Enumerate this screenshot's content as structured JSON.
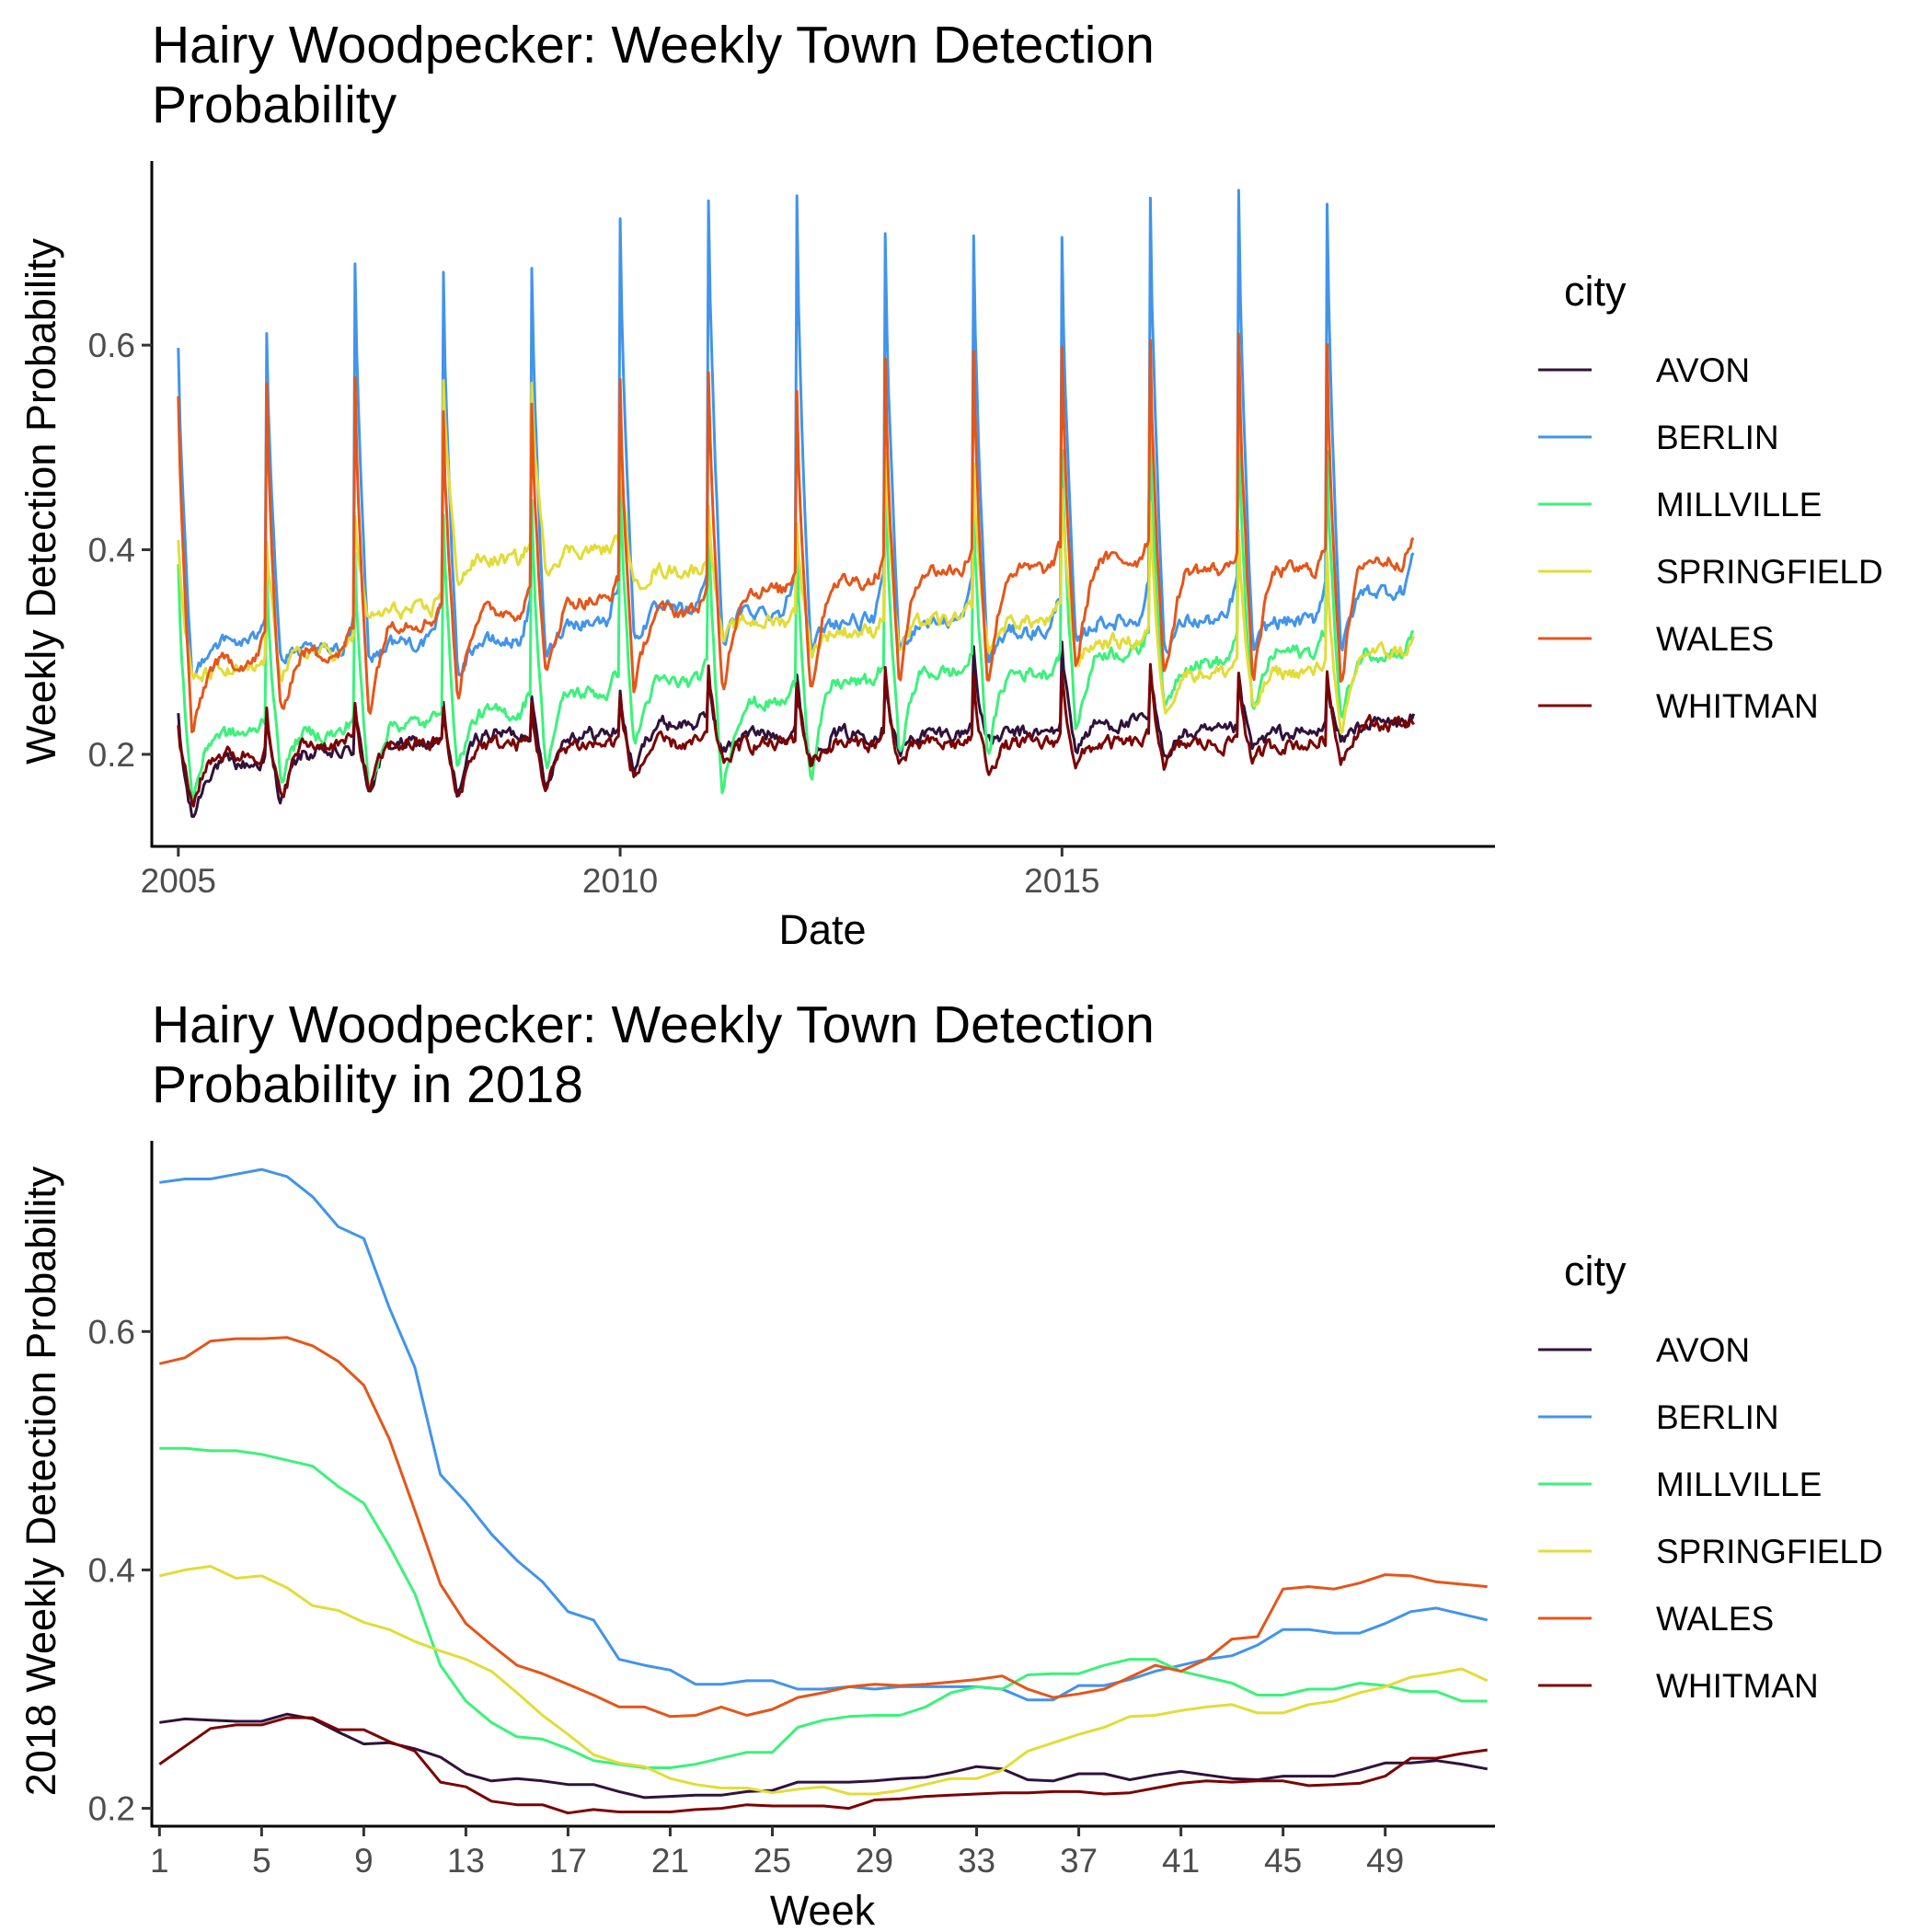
{
  "chart_data": [
    {
      "type": "line",
      "title": "Hairy Woodpecker: Weekly Town Detection Probability",
      "title_lines": [
        "Hairy Woodpecker: Weekly Town Detection",
        "Probability"
      ],
      "xlabel": "Date",
      "ylabel": "Weekly Detection Probability",
      "x_type": "date",
      "xlim": [
        2004.7,
        2019.9
      ],
      "ylim": [
        0.11,
        0.78
      ],
      "x_ticks": [
        2005,
        2010,
        2015
      ],
      "x_tick_labels": [
        "2005",
        "2010",
        "2015"
      ],
      "y_ticks": [
        0.2,
        0.4,
        0.6
      ],
      "y_tick_labels": [
        "0.2",
        "0.4",
        "0.6"
      ],
      "grid": false,
      "legend_title": "city",
      "legend_position": "right",
      "years": [
        2005,
        2006,
        2007,
        2008,
        2009,
        2010,
        2011,
        2012,
        2013,
        2014,
        2015,
        2016,
        2017,
        2018
      ],
      "series": [
        {
          "name": "AVON",
          "color": "#30123b",
          "annual_peak": [
            0.235,
            0.235,
            0.25,
            0.245,
            0.26,
            0.265,
            0.28,
            0.275,
            0.285,
            0.305,
            0.31,
            0.28,
            0.275,
            0.28
          ],
          "annual_trough": [
            0.135,
            0.155,
            0.165,
            0.16,
            0.17,
            0.18,
            0.2,
            0.195,
            0.2,
            0.21,
            0.205,
            0.2,
            0.205,
            0.21
          ],
          "annual_base": [
            0.19,
            0.2,
            0.21,
            0.22,
            0.22,
            0.23,
            0.22,
            0.22,
            0.22,
            0.22,
            0.23,
            0.22,
            0.22,
            0.23
          ]
        },
        {
          "name": "BERLIN",
          "color": "#4294ea",
          "annual_peak": [
            0.595,
            0.62,
            0.685,
            0.675,
            0.675,
            0.73,
            0.745,
            0.745,
            0.705,
            0.705,
            0.71,
            0.745,
            0.745,
            0.74
          ],
          "annual_trough": [
            0.27,
            0.29,
            0.29,
            0.28,
            0.29,
            0.31,
            0.31,
            0.3,
            0.3,
            0.29,
            0.3,
            0.3,
            0.3,
            0.3
          ],
          "annual_base": [
            0.31,
            0.3,
            0.31,
            0.31,
            0.33,
            0.34,
            0.34,
            0.33,
            0.33,
            0.32,
            0.33,
            0.33,
            0.33,
            0.36
          ]
        },
        {
          "name": "MILLVILLE",
          "color": "#3bf27a",
          "annual_peak": [
            0.38,
            0.385,
            0.4,
            0.445,
            0.455,
            0.48,
            0.44,
            0.42,
            0.47,
            0.45,
            0.5,
            0.52,
            0.525,
            0.5
          ],
          "annual_trough": [
            0.155,
            0.175,
            0.16,
            0.185,
            0.185,
            0.205,
            0.165,
            0.175,
            0.2,
            0.2,
            0.22,
            0.24,
            0.235,
            0.23
          ],
          "annual_base": [
            0.22,
            0.22,
            0.23,
            0.24,
            0.26,
            0.27,
            0.25,
            0.27,
            0.28,
            0.28,
            0.3,
            0.29,
            0.3,
            0.3
          ]
        },
        {
          "name": "SPRINGFIELD",
          "color": "#e2dc38",
          "annual_peak": [
            0.41,
            0.41,
            0.43,
            0.57,
            0.56,
            0.5,
            0.45,
            0.43,
            0.5,
            0.48,
            0.46,
            0.44,
            0.42,
            0.4
          ],
          "annual_trough": [
            0.27,
            0.28,
            0.33,
            0.37,
            0.38,
            0.36,
            0.31,
            0.3,
            0.3,
            0.3,
            0.29,
            0.24,
            0.24,
            0.21
          ],
          "annual_base": [
            0.28,
            0.3,
            0.34,
            0.39,
            0.4,
            0.38,
            0.33,
            0.32,
            0.33,
            0.33,
            0.31,
            0.28,
            0.28,
            0.3
          ]
        },
        {
          "name": "WALES",
          "color": "#e4561a",
          "annual_peak": [
            0.555,
            0.56,
            0.565,
            0.535,
            0.545,
            0.565,
            0.57,
            0.56,
            0.58,
            0.59,
            0.595,
            0.61,
            0.61,
            0.595
          ],
          "annual_trough": [
            0.215,
            0.235,
            0.24,
            0.255,
            0.27,
            0.26,
            0.26,
            0.26,
            0.27,
            0.27,
            0.28,
            0.27,
            0.27,
            0.27
          ],
          "annual_base": [
            0.29,
            0.3,
            0.33,
            0.34,
            0.35,
            0.34,
            0.36,
            0.37,
            0.38,
            0.38,
            0.39,
            0.38,
            0.38,
            0.39
          ]
        },
        {
          "name": "WHITMAN",
          "color": "#7a0403",
          "annual_peak": [
            0.23,
            0.24,
            0.25,
            0.245,
            0.25,
            0.255,
            0.28,
            0.27,
            0.28,
            0.27,
            0.28,
            0.28,
            0.28,
            0.28
          ],
          "annual_trough": [
            0.15,
            0.155,
            0.165,
            0.155,
            0.165,
            0.175,
            0.19,
            0.19,
            0.19,
            0.185,
            0.19,
            0.19,
            0.19,
            0.195
          ],
          "annual_base": [
            0.2,
            0.21,
            0.21,
            0.21,
            0.21,
            0.21,
            0.21,
            0.21,
            0.21,
            0.21,
            0.21,
            0.21,
            0.21,
            0.23
          ]
        }
      ]
    },
    {
      "type": "line",
      "title": "Hairy Woodpecker: Weekly Town Detection Probability in 2018",
      "title_lines": [
        "Hairy Woodpecker: Weekly Town Detection",
        "Probability in 2018"
      ],
      "xlabel": "Week",
      "ylabel": "2018 Weekly Detection Probability",
      "xlim": [
        0.7,
        53.3
      ],
      "ylim": [
        0.185,
        0.76
      ],
      "x_ticks": [
        1,
        5,
        9,
        13,
        17,
        21,
        25,
        29,
        33,
        37,
        41,
        45,
        49
      ],
      "x_tick_labels": [
        "1",
        "5",
        "9",
        "13",
        "17",
        "21",
        "25",
        "29",
        "33",
        "37",
        "41",
        "45",
        "49"
      ],
      "y_ticks": [
        0.2,
        0.4,
        0.6
      ],
      "y_tick_labels": [
        "0.2",
        "0.4",
        "0.6"
      ],
      "grid": false,
      "legend_title": "city",
      "legend_position": "right",
      "weeks": [
        1,
        2,
        3,
        4,
        5,
        6,
        7,
        8,
        9,
        10,
        11,
        12,
        13,
        14,
        15,
        16,
        17,
        18,
        19,
        20,
        21,
        22,
        23,
        24,
        25,
        26,
        27,
        28,
        29,
        30,
        31,
        32,
        33,
        34,
        35,
        36,
        37,
        38,
        39,
        40,
        41,
        42,
        43,
        44,
        45,
        46,
        47,
        48,
        49,
        50,
        51,
        52,
        53
      ],
      "series": [
        {
          "name": "AVON",
          "color": "#30123b",
          "values": [
            0.272,
            0.275,
            0.274,
            0.273,
            0.273,
            0.279,
            0.275,
            0.264,
            0.254,
            0.255,
            0.25,
            0.243,
            0.229,
            0.223,
            0.225,
            0.223,
            0.22,
            0.22,
            0.214,
            0.209,
            0.21,
            0.211,
            0.211,
            0.214,
            0.215,
            0.222,
            0.222,
            0.222,
            0.223,
            0.225,
            0.226,
            0.23,
            0.235,
            0.233,
            0.224,
            0.223,
            0.229,
            0.229,
            0.224,
            0.228,
            0.231,
            0.228,
            0.225,
            0.224,
            0.227,
            0.227,
            0.227,
            0.232,
            0.238,
            0.238,
            0.24,
            0.237,
            0.233
          ]
        },
        {
          "name": "BERLIN",
          "color": "#4294ea",
          "values": [
            0.725,
            0.728,
            0.728,
            0.732,
            0.736,
            0.73,
            0.713,
            0.688,
            0.678,
            0.62,
            0.57,
            0.48,
            0.457,
            0.43,
            0.408,
            0.39,
            0.365,
            0.358,
            0.325,
            0.32,
            0.316,
            0.304,
            0.304,
            0.307,
            0.307,
            0.3,
            0.3,
            0.302,
            0.3,
            0.302,
            0.302,
            0.302,
            0.302,
            0.3,
            0.291,
            0.291,
            0.303,
            0.303,
            0.308,
            0.315,
            0.32,
            0.325,
            0.328,
            0.337,
            0.35,
            0.35,
            0.347,
            0.347,
            0.355,
            0.365,
            0.368,
            0.363,
            0.358
          ]
        },
        {
          "name": "MILLVILLE",
          "color": "#3bf27a",
          "values": [
            0.502,
            0.502,
            0.5,
            0.5,
            0.497,
            0.492,
            0.487,
            0.47,
            0.456,
            0.42,
            0.38,
            0.32,
            0.29,
            0.272,
            0.26,
            0.258,
            0.25,
            0.24,
            0.237,
            0.234,
            0.234,
            0.237,
            0.242,
            0.247,
            0.247,
            0.268,
            0.274,
            0.277,
            0.278,
            0.278,
            0.285,
            0.297,
            0.302,
            0.3,
            0.312,
            0.313,
            0.313,
            0.32,
            0.325,
            0.325,
            0.315,
            0.31,
            0.305,
            0.295,
            0.295,
            0.3,
            0.3,
            0.305,
            0.303,
            0.298,
            0.298,
            0.29,
            0.29
          ]
        },
        {
          "name": "SPRINGFIELD",
          "color": "#e2dc38",
          "values": [
            0.395,
            0.4,
            0.403,
            0.393,
            0.395,
            0.385,
            0.37,
            0.366,
            0.356,
            0.35,
            0.34,
            0.332,
            0.325,
            0.315,
            0.297,
            0.278,
            0.262,
            0.245,
            0.238,
            0.235,
            0.225,
            0.22,
            0.217,
            0.217,
            0.213,
            0.216,
            0.218,
            0.212,
            0.212,
            0.215,
            0.22,
            0.225,
            0.225,
            0.232,
            0.248,
            0.255,
            0.262,
            0.268,
            0.277,
            0.278,
            0.282,
            0.285,
            0.287,
            0.28,
            0.28,
            0.287,
            0.29,
            0.297,
            0.302,
            0.31,
            0.313,
            0.317,
            0.307
          ]
        },
        {
          "name": "WALES",
          "color": "#e4561a",
          "values": [
            0.573,
            0.578,
            0.592,
            0.594,
            0.594,
            0.595,
            0.588,
            0.575,
            0.555,
            0.51,
            0.45,
            0.388,
            0.355,
            0.337,
            0.32,
            0.313,
            0.304,
            0.295,
            0.285,
            0.285,
            0.277,
            0.278,
            0.285,
            0.278,
            0.283,
            0.293,
            0.297,
            0.302,
            0.304,
            0.303,
            0.304,
            0.306,
            0.308,
            0.311,
            0.3,
            0.293,
            0.296,
            0.3,
            0.31,
            0.32,
            0.315,
            0.325,
            0.342,
            0.344,
            0.384,
            0.386,
            0.384,
            0.389,
            0.396,
            0.395,
            0.39,
            0.388,
            0.386
          ]
        },
        {
          "name": "WHITMAN",
          "color": "#7a0403",
          "values": [
            0.237,
            0.252,
            0.267,
            0.27,
            0.27,
            0.276,
            0.276,
            0.266,
            0.266,
            0.256,
            0.248,
            0.222,
            0.218,
            0.206,
            0.203,
            0.203,
            0.196,
            0.199,
            0.197,
            0.197,
            0.197,
            0.199,
            0.2,
            0.203,
            0.202,
            0.202,
            0.202,
            0.2,
            0.207,
            0.208,
            0.21,
            0.211,
            0.212,
            0.213,
            0.213,
            0.214,
            0.214,
            0.212,
            0.213,
            0.217,
            0.221,
            0.223,
            0.222,
            0.223,
            0.223,
            0.219,
            0.22,
            0.221,
            0.227,
            0.242,
            0.242,
            0.246,
            0.249
          ]
        }
      ]
    }
  ]
}
